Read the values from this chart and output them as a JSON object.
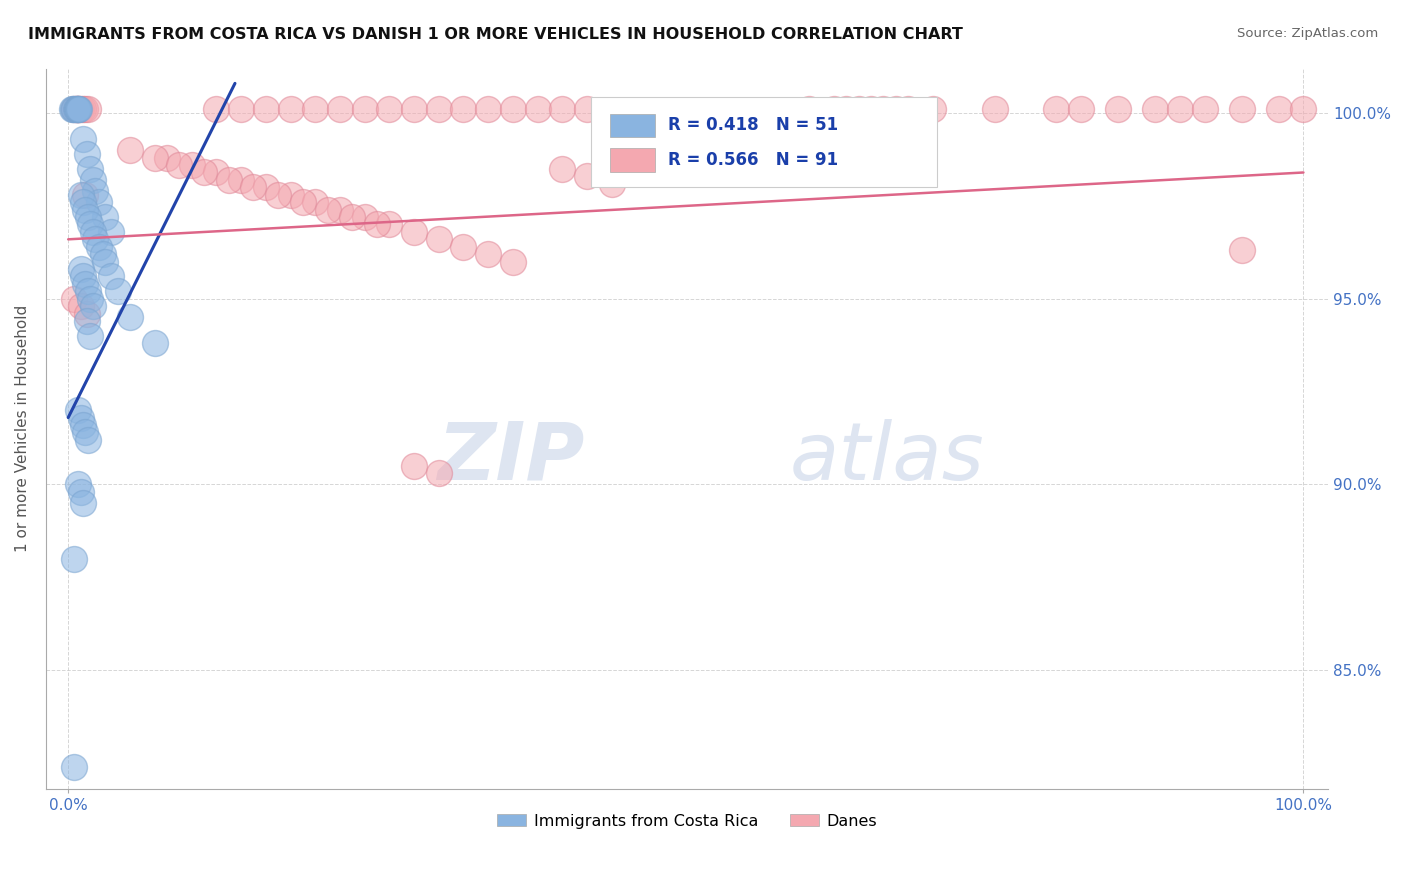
{
  "title": "IMMIGRANTS FROM COSTA RICA VS DANISH 1 OR MORE VEHICLES IN HOUSEHOLD CORRELATION CHART",
  "source_text": "Source: ZipAtlas.com",
  "ylabel": "1 or more Vehicles in Household",
  "blue_color": "#8ab4e0",
  "pink_color": "#f4a8b0",
  "blue_line_color": "#2244aa",
  "pink_line_color": "#dd6688",
  "R_blue": 0.418,
  "N_blue": 51,
  "R_pink": 0.566,
  "N_pink": 91,
  "watermark_zip": "ZIP",
  "watermark_atlas": "atlas",
  "legend_labels": [
    "Immigrants from Costa Rica",
    "Danes"
  ],
  "ytick_labels": [
    "85.0%",
    "90.0%",
    "95.0%",
    "100.0%"
  ],
  "ytick_vals": [
    0.85,
    0.9,
    0.95,
    1.0
  ],
  "ylim_low": 0.818,
  "ylim_high": 1.012,
  "xlim_low": -0.018,
  "xlim_high": 1.02,
  "blue_line_x": [
    0.0,
    0.135
  ],
  "blue_line_y": [
    0.918,
    1.008
  ],
  "pink_line_x": [
    0.0,
    1.0
  ],
  "pink_line_y": [
    0.966,
    0.984
  ]
}
